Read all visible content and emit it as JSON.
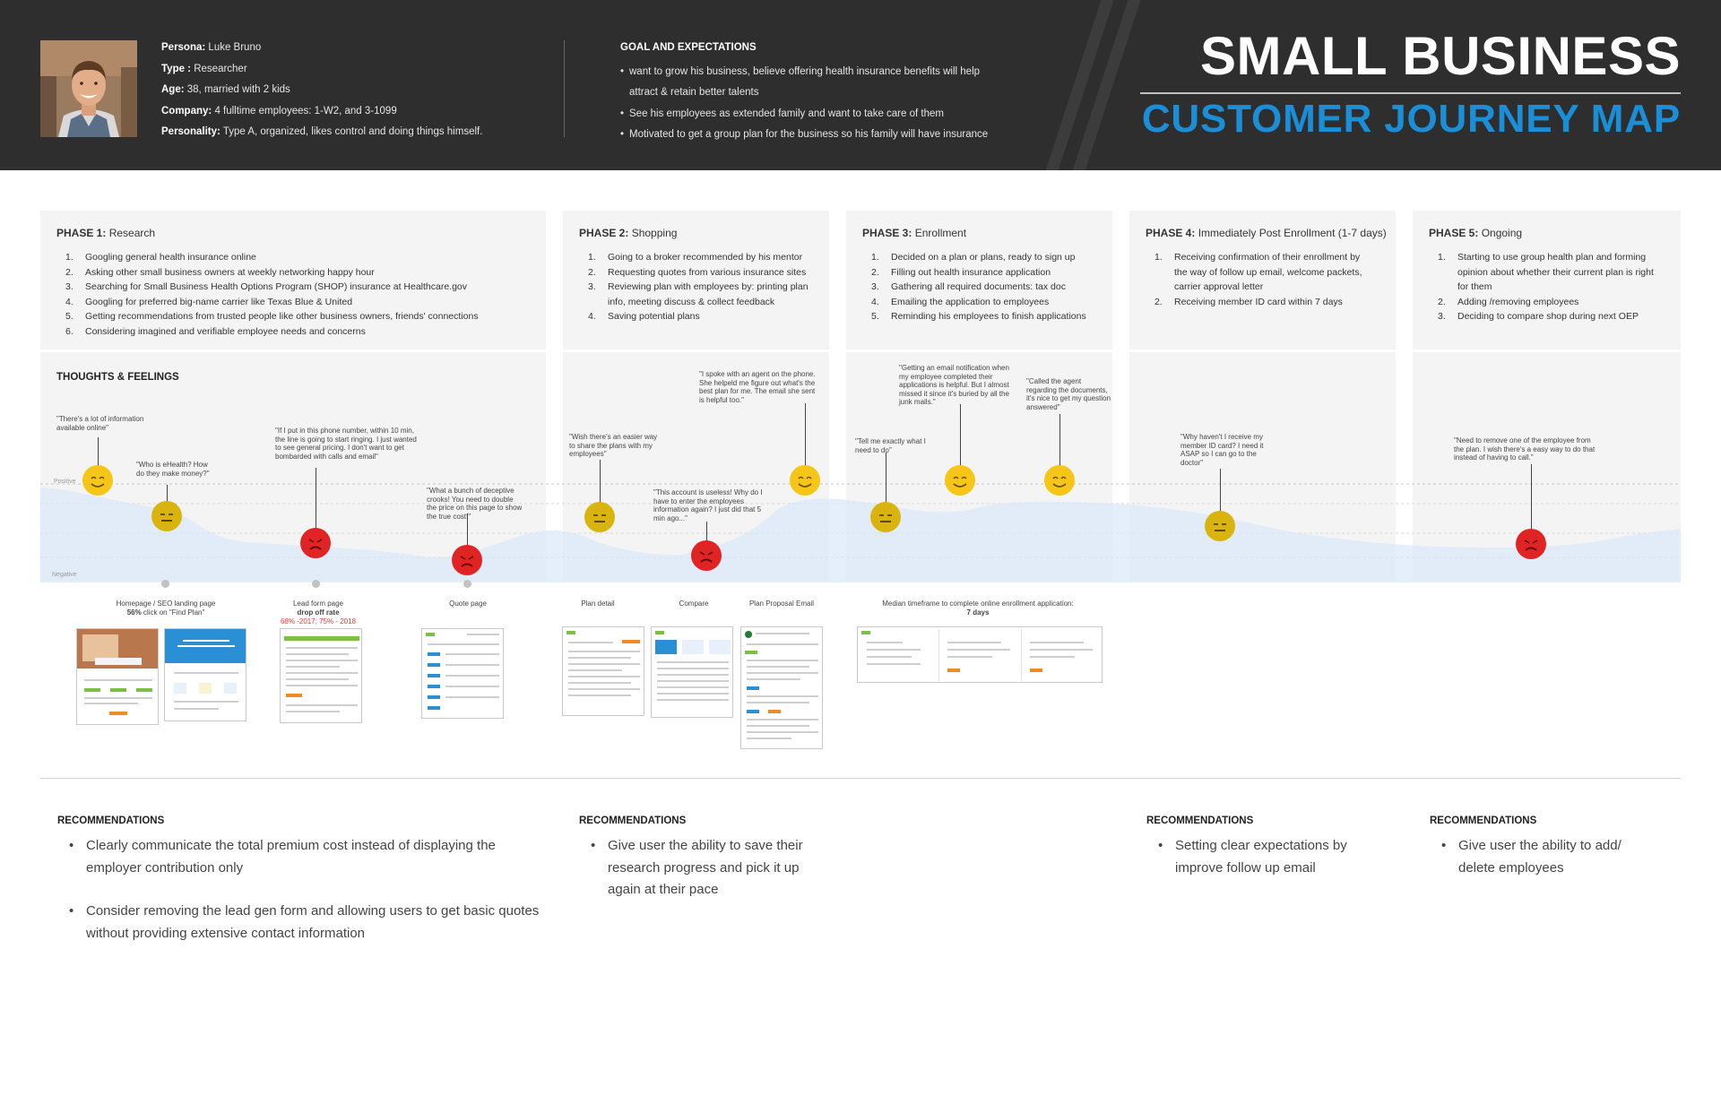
{
  "header": {
    "persona": {
      "name_label": "Persona:",
      "name": "Luke Bruno",
      "type_label": "Type :",
      "type": "Researcher",
      "age_label": "Age:",
      "age": "38, married with 2 kids",
      "company_label": "Company:",
      "company": "4 fulltime employees: 1-W2, and 3-1099",
      "personality_label": "Personality:",
      "personality": "Type A, organized, likes control and doing things himself."
    },
    "goals": {
      "title": "GOAL AND EXPECTATIONS",
      "items": [
        "want to grow his business, believe offering health insurance benefits will help",
        "attract & retain better talents",
        "See his employees as extended family and want to take care of them",
        "Motivated to get a group plan for the business so his family will have insurance"
      ]
    },
    "title_line1": "SMALL BUSINESS",
    "title_line2": "CUSTOMER JOURNEY MAP",
    "colors": {
      "header_bg": "#2e2e2e",
      "accent": "#1a8fd8"
    }
  },
  "phases": [
    {
      "label": "PHASE 1:",
      "name": "Research",
      "steps": [
        "Googling general health insurance online",
        "Asking other small business owners at weekly networking happy hour",
        "Searching for Small Business Health Options Program (SHOP) insurance at Healthcare.gov",
        "Googling for preferred big-name carrier like Texas Blue & United",
        "Getting recommendations from trusted people like other business owners, friends' connections",
        "Considering imagined and verifiable employee needs and concerns"
      ]
    },
    {
      "label": "PHASE 2:",
      "name": "Shopping",
      "steps": [
        "Going to a broker recommended by his mentor",
        "Requesting quotes from various insurance sites",
        "Reviewing plan with employees by: printing plan",
        "info, meeting discuss & collect feedback",
        "Saving potential plans"
      ]
    },
    {
      "label": "PHASE 3:",
      "name": "Enrollment",
      "steps": [
        "Decided on a plan or plans, ready to sign up",
        "Filling out health insurance application",
        "Gathering all required documents: tax doc",
        "Emailing the application to employees",
        "Reminding his employees to finish applications"
      ]
    },
    {
      "label": "PHASE 4:",
      "name": "Immediately Post Enrollment (1-7 days)",
      "steps": [
        "Receiving confirmation of their enrollment by",
        "the way of follow up email, welcome packets,",
        "carrier approval letter",
        "Receiving member ID card within 7 days"
      ]
    },
    {
      "label": "PHASE 5:",
      "name": "Ongoing",
      "steps": [
        "Starting to use group health plan and forming",
        "opinion about whether their current plan is right",
        "for them",
        "Adding /removing employees",
        "Deciding to compare shop during next OEP"
      ]
    }
  ],
  "thoughts": {
    "title": "THOUGHTS & FEELINGS",
    "axis_positive": "Positive",
    "axis_negative": "Negative",
    "quotes": [
      "\"There's a lot of information available online\"",
      "\"Who is eHealth?  How do they make money?\"",
      "\"If I put in this phone number, within 10 min, the line is going to start ringing. I just wanted to see general pricing. I don't want to get bombarded with calls and email\"",
      "\"What a bunch of deceptive crooks! You need to double the price on this page to show the true cost!\"",
      "\"Wish there's an easier way to share the plans with my employees\"",
      "\"This account is useless! Why do I have to enter the employees information again? I just did that 5 min ago...\"",
      "\"I spoke with an agent on the phone. She helpeld me figure out what's the best plan for me. The email she sent is helpful too.\"",
      "\"Tell me exactly what I need to do\"",
      "\"Getting an email notification when my employee completed their applications is helpful. But I almost missed it since it's buried by all the junk mails.\"",
      "\"Called the agent regarding the documents, it's nice to get my question answered\"",
      "\"Why haven't I receive my member ID card? I need it ASAP so I can go to the doctor\"",
      "\"Need to remove one of the employee from the plan. I wish there's a easy way to do that instead of having to call.\""
    ],
    "sentiments": [
      "happy",
      "neutral",
      "angry",
      "angry",
      "neutral",
      "angry",
      "happy",
      "neutral",
      "happy",
      "happy",
      "neutral",
      "angry"
    ],
    "sentiment_colors": {
      "happy": "#f5c518",
      "neutral": "#d9b40f",
      "angry": "#e02424"
    }
  },
  "touchpoints": {
    "homepage_label": "Homepage / SEO landing page",
    "homepage_stat_bold": "56%",
    "homepage_stat": " click on \"Find Plan\"",
    "lead_label": "Lead form page",
    "lead_stat_bold": "drop off rate",
    "lead_stat_red": "68% -2017; 75% - 2018",
    "quote_label": "Quote page",
    "plan_detail_label": "Plan detail",
    "compare_label": "Compare",
    "proposal_label": "Plan Proposal Email",
    "enroll_label": "Median timeframe to complete online enrollment application:",
    "enroll_stat": "7 days"
  },
  "recommendations": [
    {
      "title": "RECOMMENDATIONS",
      "items": [
        "Clearly communicate the total premium cost instead of displaying the employer contribution only",
        "Consider removing the lead gen form and allowing users to get basic quotes without providing extensive contact information"
      ]
    },
    {
      "title": "RECOMMENDATIONS",
      "items": [
        "Give user the ability to save their research progress and pick it up again at their pace"
      ]
    },
    {
      "title": "RECOMMENDATIONS",
      "items": [
        "Setting clear expectations by improve follow up email"
      ]
    },
    {
      "title": "RECOMMENDATIONS",
      "items": [
        "Give user the ability to add/ delete employees"
      ]
    }
  ]
}
